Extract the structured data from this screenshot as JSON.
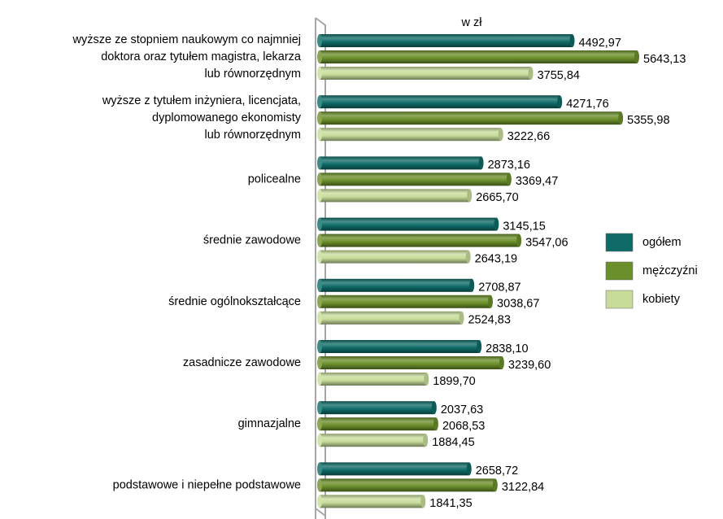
{
  "chart_data": {
    "type": "bar",
    "orientation": "horizontal",
    "unit_label": "w zł",
    "categories": [
      "wyższe ze stopniem naukowym co najmniej\ndoktora oraz tytułem magistra, lekarza\nlub równorzędnym",
      "wyższe z tytułem inżyniera, licencjata,\ndyplomowanego ekonomisty\nlub równorzędnym",
      "policealne",
      "średnie zawodowe",
      "średnie ogólnokształcące",
      "zasadnicze zawodowe",
      "gimnazjalne",
      "podstawowe i niepełne podstawowe"
    ],
    "series": [
      {
        "name": "ogółem",
        "color": "#0e6b67",
        "values": [
          4492.97,
          4271.76,
          2873.16,
          3145.15,
          2708.87,
          2838.1,
          2037.63,
          2658.72
        ],
        "value_labels": [
          "4492,97",
          "4271,76",
          "2873,16",
          "3145,15",
          "2708,87",
          "2838,10",
          "2037,63",
          "2658,72"
        ]
      },
      {
        "name": "mężczyźni",
        "color": "#6b8f2a",
        "values": [
          5643.13,
          5355.98,
          3369.47,
          3547.06,
          3038.67,
          3239.6,
          2068.53,
          3122.84
        ],
        "value_labels": [
          "5643,13",
          "5355,98",
          "3369,47",
          "3547,06",
          "3038,67",
          "3239,60",
          "2068,53",
          "3122,84"
        ]
      },
      {
        "name": "kobiety",
        "color": "#c8dc9a",
        "values": [
          3755.84,
          3222.66,
          2665.7,
          2643.19,
          2524.83,
          1899.7,
          1884.45,
          1841.35
        ],
        "value_labels": [
          "3755,84",
          "3222,66",
          "2665,70",
          "2643,19",
          "2524,83",
          "1899,70",
          "1884,45",
          "1841,35"
        ]
      }
    ],
    "legend": "right"
  }
}
